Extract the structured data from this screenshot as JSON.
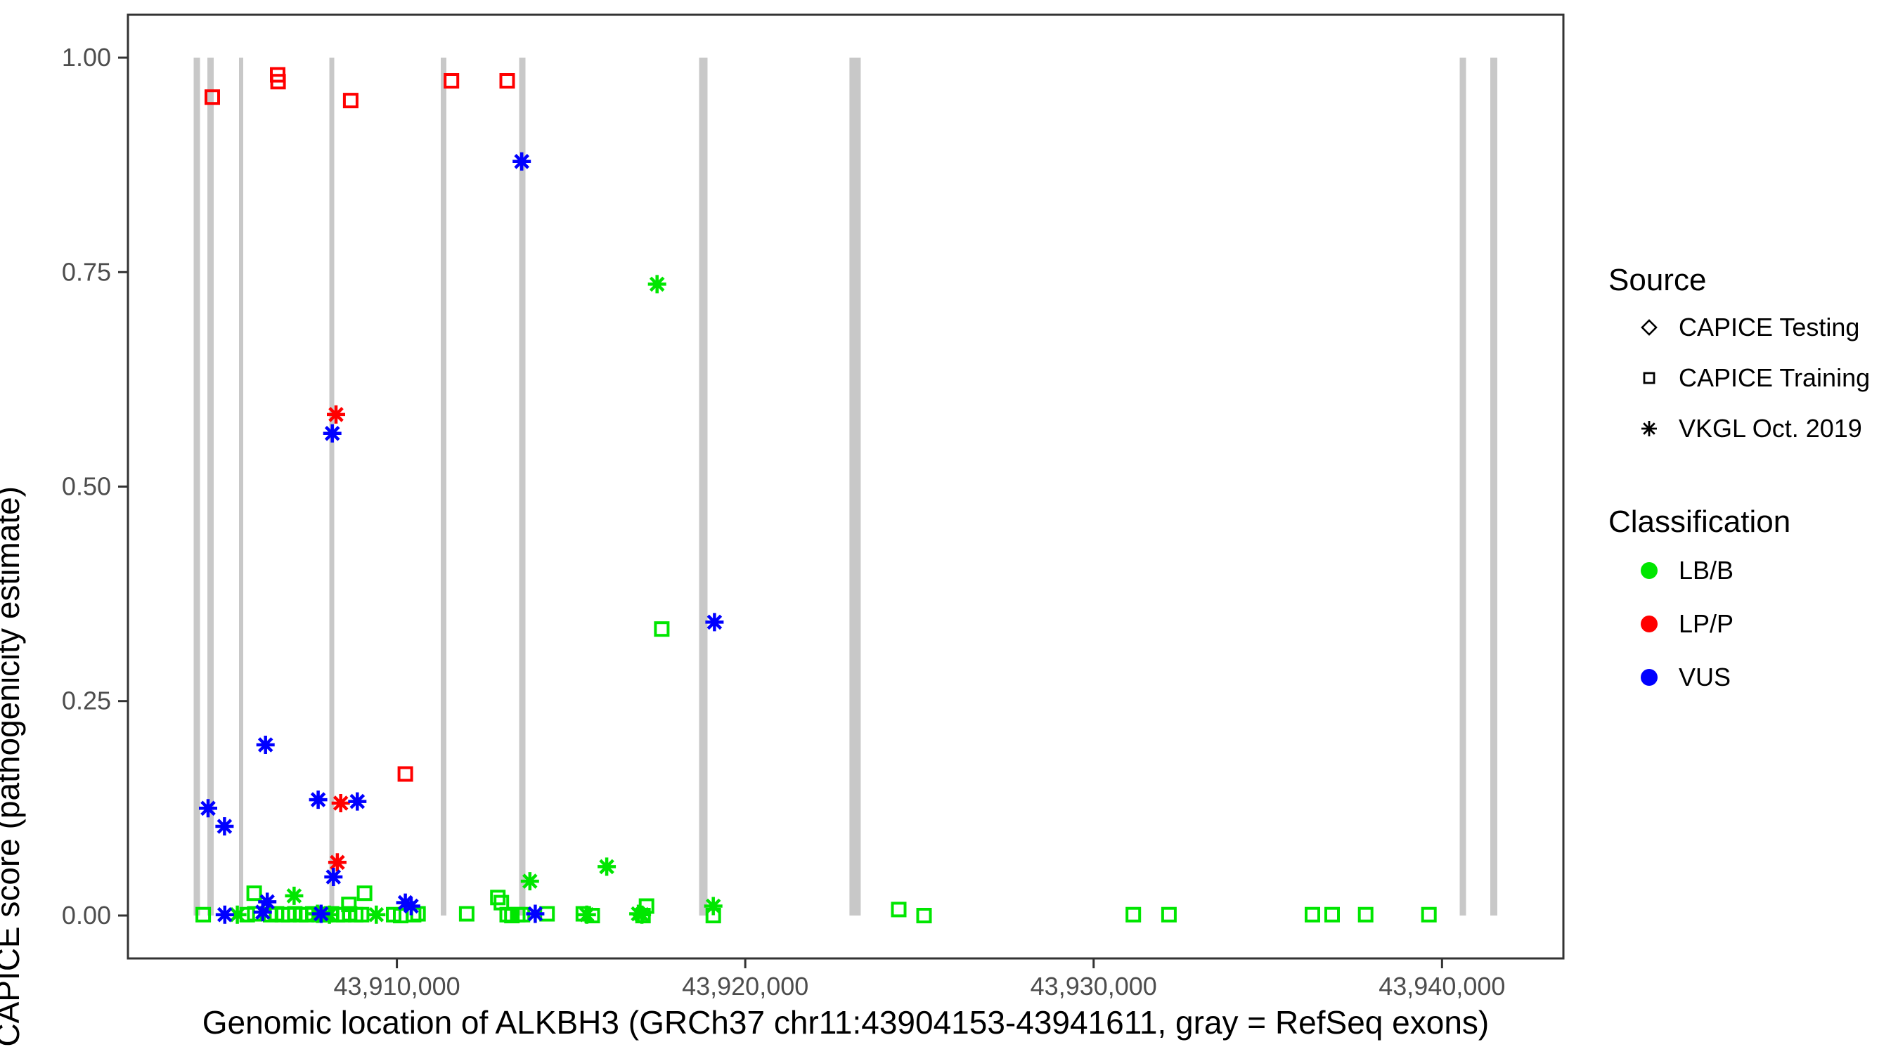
{
  "figure": {
    "x_axis_title": "Genomic location of ALKBH3 (GRCh37 chr11:43904153-43941611, gray = RefSeq exons)",
    "y_axis_title": "CAPICE score (pathogenicity estimate)"
  },
  "legend": {
    "source": {
      "title": "Source",
      "items": [
        {
          "shape": "diamond",
          "label": "CAPICE Testing"
        },
        {
          "shape": "square",
          "label": "CAPICE Training"
        },
        {
          "shape": "asterisk",
          "label": "VKGL Oct. 2019"
        }
      ]
    },
    "classification": {
      "title": "Classification",
      "items": [
        {
          "color": "#00E600",
          "label": "LB/B"
        },
        {
          "color": "#FF0000",
          "label": "LP/P"
        },
        {
          "color": "#0000FF",
          "label": "VUS"
        }
      ]
    }
  },
  "chart_data": {
    "type": "scatter",
    "title": "",
    "xlabel": "Genomic location of ALKBH3 (GRCh37 chr11:43904153-43941611, gray = RefSeq exons)",
    "ylabel": "CAPICE score (pathogenicity estimate)",
    "x_domain": [
      43902280,
      43943484
    ],
    "y_domain": [
      -0.05,
      1.05
    ],
    "grid": "off",
    "legend_position": "right",
    "x_ticks": [
      {
        "v": 43910000,
        "label": "43,910,000"
      },
      {
        "v": 43920000,
        "label": "43,920,000"
      },
      {
        "v": 43930000,
        "label": "43,930,000"
      },
      {
        "v": 43940000,
        "label": "43,940,000"
      }
    ],
    "y_ticks": [
      {
        "v": 0.0,
        "label": "0.00"
      },
      {
        "v": 0.25,
        "label": "0.25"
      },
      {
        "v": 0.5,
        "label": "0.50"
      },
      {
        "v": 0.75,
        "label": "0.75"
      },
      {
        "v": 1.0,
        "label": "1.00"
      }
    ],
    "exon_color": "#C8C8C8",
    "exons": [
      {
        "start": 43904166,
        "end": 43904348
      },
      {
        "start": 43904560,
        "end": 43904742
      },
      {
        "start": 43905469,
        "end": 43905590
      },
      {
        "start": 43908062,
        "end": 43908203
      },
      {
        "start": 43911260,
        "end": 43911421
      },
      {
        "start": 43913509,
        "end": 43913691
      },
      {
        "start": 43918675,
        "end": 43918917
      },
      {
        "start": 43922990,
        "end": 43923313
      },
      {
        "start": 43940508,
        "end": 43940690
      },
      {
        "start": 43941386,
        "end": 43941588
      }
    ],
    "class_colors": {
      "LB/B": "#00E600",
      "LP/P": "#FF0000",
      "VUS": "#0000FF"
    },
    "source_shapes": {
      "CAPICE Testing": "diamond",
      "CAPICE Training": "square",
      "VKGL Oct. 2019": "asterisk"
    },
    "points": [
      {
        "bp": 43904701,
        "score": 0.954,
        "cls": "LP/P",
        "src": "CAPICE Training"
      },
      {
        "bp": 43906577,
        "score": 0.98,
        "cls": "LP/P",
        "src": "CAPICE Training"
      },
      {
        "bp": 43906590,
        "score": 0.972,
        "cls": "LP/P",
        "src": "CAPICE Training"
      },
      {
        "bp": 43908675,
        "score": 0.95,
        "cls": "LP/P",
        "src": "CAPICE Training"
      },
      {
        "bp": 43911567,
        "score": 0.973,
        "cls": "LP/P",
        "src": "CAPICE Training"
      },
      {
        "bp": 43913167,
        "score": 0.973,
        "cls": "LP/P",
        "src": "CAPICE Training"
      },
      {
        "bp": 43910242,
        "score": 0.165,
        "cls": "LP/P",
        "src": "CAPICE Training"
      },
      {
        "bp": 43908252,
        "score": 0.584,
        "cls": "LP/P",
        "src": "VKGL Oct. 2019"
      },
      {
        "bp": 43908387,
        "score": 0.131,
        "cls": "LP/P",
        "src": "VKGL Oct. 2019"
      },
      {
        "bp": 43908292,
        "score": 0.062,
        "cls": "LP/P",
        "src": "VKGL Oct. 2019"
      },
      {
        "bp": 43913584,
        "score": 0.879,
        "cls": "VUS",
        "src": "VKGL Oct. 2019"
      },
      {
        "bp": 43908145,
        "score": 0.562,
        "cls": "VUS",
        "src": "VKGL Oct. 2019"
      },
      {
        "bp": 43919116,
        "score": 0.342,
        "cls": "VUS",
        "src": "VKGL Oct. 2019"
      },
      {
        "bp": 43906228,
        "score": 0.199,
        "cls": "VUS",
        "src": "VKGL Oct. 2019"
      },
      {
        "bp": 43904580,
        "score": 0.125,
        "cls": "VUS",
        "src": "VKGL Oct. 2019"
      },
      {
        "bp": 43905052,
        "score": 0.104,
        "cls": "VUS",
        "src": "VKGL Oct. 2019"
      },
      {
        "bp": 43907741,
        "score": 0.135,
        "cls": "VUS",
        "src": "VKGL Oct. 2019"
      },
      {
        "bp": 43908865,
        "score": 0.133,
        "cls": "VUS",
        "src": "VKGL Oct. 2019"
      },
      {
        "bp": 43908179,
        "score": 0.045,
        "cls": "VUS",
        "src": "VKGL Oct. 2019"
      },
      {
        "bp": 43906280,
        "score": 0.016,
        "cls": "VUS",
        "src": "VKGL Oct. 2019"
      },
      {
        "bp": 43906150,
        "score": 0.004,
        "cls": "VUS",
        "src": "VKGL Oct. 2019"
      },
      {
        "bp": 43905060,
        "score": 0.001,
        "cls": "VUS",
        "src": "VKGL Oct. 2019"
      },
      {
        "bp": 43907822,
        "score": 0.002,
        "cls": "VUS",
        "src": "VKGL Oct. 2019"
      },
      {
        "bp": 43910242,
        "score": 0.015,
        "cls": "VUS",
        "src": "VKGL Oct. 2019"
      },
      {
        "bp": 43910410,
        "score": 0.011,
        "cls": "VUS",
        "src": "VKGL Oct. 2019"
      },
      {
        "bp": 43913972,
        "score": 0.002,
        "cls": "VUS",
        "src": "VKGL Oct. 2019"
      },
      {
        "bp": 43917469,
        "score": 0.736,
        "cls": "LB/B",
        "src": "VKGL Oct. 2019"
      },
      {
        "bp": 43916024,
        "score": 0.057,
        "cls": "LB/B",
        "src": "VKGL Oct. 2019"
      },
      {
        "bp": 43913818,
        "score": 0.04,
        "cls": "LB/B",
        "src": "VKGL Oct. 2019"
      },
      {
        "bp": 43907050,
        "score": 0.023,
        "cls": "LB/B",
        "src": "VKGL Oct. 2019"
      },
      {
        "bp": 43905419,
        "score": 0.001,
        "cls": "LB/B",
        "src": "VKGL Oct. 2019"
      },
      {
        "bp": 43907721,
        "score": 0.002,
        "cls": "LB/B",
        "src": "VKGL Oct. 2019"
      },
      {
        "bp": 43908064,
        "score": 0.001,
        "cls": "LB/B",
        "src": "VKGL Oct. 2019"
      },
      {
        "bp": 43909408,
        "score": 0.001,
        "cls": "LB/B",
        "src": "VKGL Oct. 2019"
      },
      {
        "bp": 43915452,
        "score": 0.001,
        "cls": "LB/B",
        "src": "VKGL Oct. 2019"
      },
      {
        "bp": 43916932,
        "score": 0.002,
        "cls": "LB/B",
        "src": "VKGL Oct. 2019"
      },
      {
        "bp": 43917033,
        "score": 0.001,
        "cls": "LB/B",
        "src": "VKGL Oct. 2019"
      },
      {
        "bp": 43919082,
        "score": 0.011,
        "cls": "LB/B",
        "src": "VKGL Oct. 2019"
      },
      {
        "bp": 43917604,
        "score": 0.334,
        "cls": "LB/B",
        "src": "CAPICE Training"
      },
      {
        "bp": 43905905,
        "score": 0.026,
        "cls": "LB/B",
        "src": "CAPICE Training"
      },
      {
        "bp": 43909073,
        "score": 0.026,
        "cls": "LB/B",
        "src": "CAPICE Training"
      },
      {
        "bp": 43908622,
        "score": 0.013,
        "cls": "LB/B",
        "src": "CAPICE Training"
      },
      {
        "bp": 43912898,
        "score": 0.021,
        "cls": "LB/B",
        "src": "CAPICE Training"
      },
      {
        "bp": 43912999,
        "score": 0.015,
        "cls": "LB/B",
        "src": "CAPICE Training"
      },
      {
        "bp": 43917166,
        "score": 0.011,
        "cls": "LB/B",
        "src": "CAPICE Training"
      },
      {
        "bp": 43924406,
        "score": 0.007,
        "cls": "LB/B",
        "src": "CAPICE Training"
      },
      {
        "bp": 43904442,
        "score": 0.001,
        "cls": "LB/B",
        "src": "CAPICE Training"
      },
      {
        "bp": 43905705,
        "score": 0.001,
        "cls": "LB/B",
        "src": "CAPICE Training"
      },
      {
        "bp": 43905920,
        "score": 0.002,
        "cls": "LB/B",
        "src": "CAPICE Training"
      },
      {
        "bp": 43906376,
        "score": 0.001,
        "cls": "LB/B",
        "src": "CAPICE Training"
      },
      {
        "bp": 43906546,
        "score": 0.002,
        "cls": "LB/B",
        "src": "CAPICE Training"
      },
      {
        "bp": 43906713,
        "score": 0.001,
        "cls": "LB/B",
        "src": "CAPICE Training"
      },
      {
        "bp": 43906901,
        "score": 0.001,
        "cls": "LB/B",
        "src": "CAPICE Training"
      },
      {
        "bp": 43907070,
        "score": 0.002,
        "cls": "LB/B",
        "src": "CAPICE Training"
      },
      {
        "bp": 43907238,
        "score": 0.001,
        "cls": "LB/B",
        "src": "CAPICE Training"
      },
      {
        "bp": 43907405,
        "score": 0.001,
        "cls": "LB/B",
        "src": "CAPICE Training"
      },
      {
        "bp": 43907587,
        "score": 0.002,
        "cls": "LB/B",
        "src": "CAPICE Training"
      },
      {
        "bp": 43907768,
        "score": 0.001,
        "cls": "LB/B",
        "src": "CAPICE Training"
      },
      {
        "bp": 43907944,
        "score": 0.001,
        "cls": "LB/B",
        "src": "CAPICE Training"
      },
      {
        "bp": 43908125,
        "score": 0.002,
        "cls": "LB/B",
        "src": "CAPICE Training"
      },
      {
        "bp": 43908293,
        "score": 0.001,
        "cls": "LB/B",
        "src": "CAPICE Training"
      },
      {
        "bp": 43908474,
        "score": 0.001,
        "cls": "LB/B",
        "src": "CAPICE Training"
      },
      {
        "bp": 43908644,
        "score": 0.002,
        "cls": "LB/B",
        "src": "CAPICE Training"
      },
      {
        "bp": 43908817,
        "score": 0.001,
        "cls": "LB/B",
        "src": "CAPICE Training"
      },
      {
        "bp": 43908987,
        "score": 0.001,
        "cls": "LB/B",
        "src": "CAPICE Training"
      },
      {
        "bp": 43909907,
        "score": 0.001,
        "cls": "LB/B",
        "src": "CAPICE Training"
      },
      {
        "bp": 43910109,
        "score": 0.0,
        "cls": "LB/B",
        "src": "CAPICE Training"
      },
      {
        "bp": 43910480,
        "score": 0.001,
        "cls": "LB/B",
        "src": "CAPICE Training"
      },
      {
        "bp": 43910607,
        "score": 0.002,
        "cls": "LB/B",
        "src": "CAPICE Training"
      },
      {
        "bp": 43912003,
        "score": 0.002,
        "cls": "LB/B",
        "src": "CAPICE Training"
      },
      {
        "bp": 43913167,
        "score": 0.001,
        "cls": "LB/B",
        "src": "CAPICE Training"
      },
      {
        "bp": 43913302,
        "score": 0.0,
        "cls": "LB/B",
        "src": "CAPICE Training"
      },
      {
        "bp": 43913469,
        "score": 0.001,
        "cls": "LB/B",
        "src": "CAPICE Training"
      },
      {
        "bp": 43913604,
        "score": 0.001,
        "cls": "LB/B",
        "src": "CAPICE Training"
      },
      {
        "bp": 43914310,
        "score": 0.002,
        "cls": "LB/B",
        "src": "CAPICE Training"
      },
      {
        "bp": 43915351,
        "score": 0.002,
        "cls": "LB/B",
        "src": "CAPICE Training"
      },
      {
        "bp": 43915607,
        "score": 0.0,
        "cls": "LB/B",
        "src": "CAPICE Training"
      },
      {
        "bp": 43917065,
        "score": 0.0,
        "cls": "LB/B",
        "src": "CAPICE Training"
      },
      {
        "bp": 43919082,
        "score": 0.0,
        "cls": "LB/B",
        "src": "CAPICE Training"
      },
      {
        "bp": 43925132,
        "score": 0.0,
        "cls": "LB/B",
        "src": "CAPICE Training"
      },
      {
        "bp": 43931138,
        "score": 0.001,
        "cls": "LB/B",
        "src": "CAPICE Training"
      },
      {
        "bp": 43932161,
        "score": 0.001,
        "cls": "LB/B",
        "src": "CAPICE Training"
      },
      {
        "bp": 43936281,
        "score": 0.001,
        "cls": "LB/B",
        "src": "CAPICE Training"
      },
      {
        "bp": 43936846,
        "score": 0.001,
        "cls": "LB/B",
        "src": "CAPICE Training"
      },
      {
        "bp": 43937808,
        "score": 0.001,
        "cls": "LB/B",
        "src": "CAPICE Training"
      },
      {
        "bp": 43939623,
        "score": 0.001,
        "cls": "LB/B",
        "src": "CAPICE Training"
      }
    ]
  }
}
